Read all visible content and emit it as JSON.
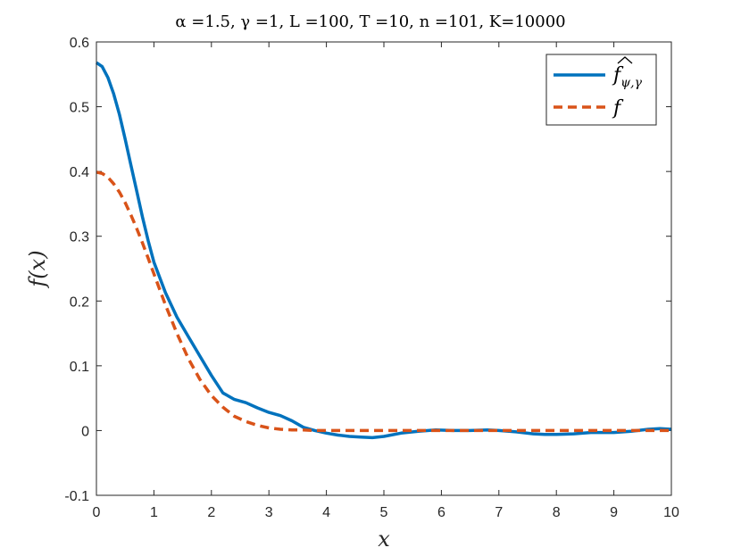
{
  "chart_data": {
    "type": "line",
    "title": "α =1.5, γ =1, L =100, T =10, n =101, K=10000",
    "xlabel": "x",
    "ylabel": "f(x)",
    "xlim": [
      0,
      10
    ],
    "ylim": [
      -0.1,
      0.6
    ],
    "xticks": [
      "0",
      "1",
      "2",
      "3",
      "4",
      "5",
      "6",
      "7",
      "8",
      "9",
      "10"
    ],
    "yticks": [
      "-0.1",
      "0",
      "0.1",
      "0.2",
      "0.3",
      "0.4",
      "0.5",
      "0.6"
    ],
    "grid": false,
    "legend": "top-right",
    "series": [
      {
        "name": "f̂ψ,γ",
        "legend_main": "f",
        "legend_sub": "ψ,γ",
        "style": "solid",
        "color": "#0072BD",
        "x": [
          0,
          0.1,
          0.2,
          0.3,
          0.4,
          0.5,
          0.6,
          0.7,
          0.8,
          0.9,
          1.0,
          1.2,
          1.4,
          1.6,
          1.8,
          2.0,
          2.2,
          2.4,
          2.6,
          2.8,
          3.0,
          3.2,
          3.4,
          3.6,
          3.8,
          4.0,
          4.2,
          4.4,
          4.6,
          4.8,
          5.0,
          5.3,
          5.6,
          5.9,
          6.2,
          6.5,
          6.8,
          7.0,
          7.3,
          7.6,
          7.8,
          8.0,
          8.3,
          8.6,
          9.0,
          9.3,
          9.6,
          9.8,
          10.0
        ],
        "y": [
          0.568,
          0.562,
          0.545,
          0.52,
          0.488,
          0.45,
          0.41,
          0.37,
          0.33,
          0.293,
          0.26,
          0.213,
          0.175,
          0.145,
          0.115,
          0.085,
          0.058,
          0.048,
          0.043,
          0.035,
          0.028,
          0.023,
          0.015,
          0.005,
          0.0,
          -0.004,
          -0.007,
          -0.009,
          -0.01,
          -0.011,
          -0.009,
          -0.004,
          -0.001,
          0.001,
          0.0,
          0.0,
          0.001,
          0.0,
          -0.002,
          -0.005,
          -0.006,
          -0.006,
          -0.005,
          -0.003,
          -0.003,
          -0.001,
          0.002,
          0.003,
          0.002
        ]
      },
      {
        "name": "f",
        "legend_main": "f",
        "legend_sub": "",
        "style": "dashed",
        "color": "#D95319",
        "x": [
          0,
          0.1,
          0.2,
          0.3,
          0.4,
          0.5,
          0.6,
          0.7,
          0.8,
          0.9,
          1.0,
          1.2,
          1.4,
          1.6,
          1.8,
          2.0,
          2.2,
          2.4,
          2.6,
          2.8,
          3.0,
          3.2,
          3.4,
          3.6,
          3.8,
          4.0,
          5.0,
          6.0,
          7.0,
          8.0,
          9.0,
          10.0
        ],
        "y": [
          0.399,
          0.397,
          0.391,
          0.381,
          0.368,
          0.352,
          0.333,
          0.312,
          0.29,
          0.266,
          0.242,
          0.194,
          0.15,
          0.111,
          0.079,
          0.054,
          0.036,
          0.022,
          0.014,
          0.008,
          0.004,
          0.002,
          0.001,
          0.001,
          0.0,
          0.0,
          0.0,
          0.0,
          0.0,
          0.0,
          0.0,
          0.0
        ]
      }
    ]
  }
}
